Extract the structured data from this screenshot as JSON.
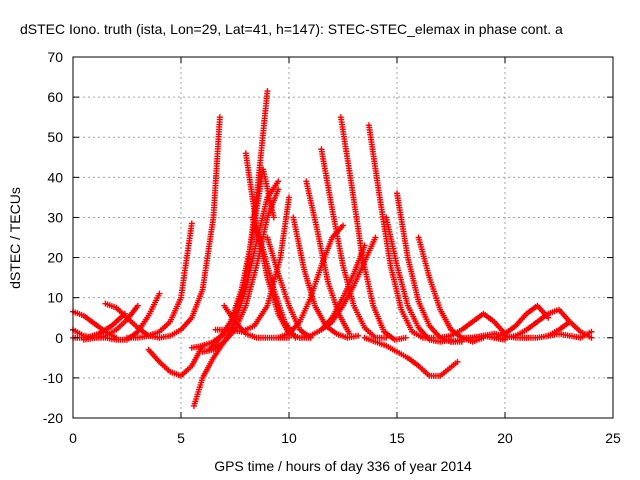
{
  "chart_data": {
    "type": "scatter",
    "title": "dSTEC Iono. truth (ista, Lon=29, Lat=41, h=147): STEC-STEC_elemax in phase cont. a",
    "xlabel": "GPS time / hours of day 336 of year 2014",
    "ylabel": "dSTEC  / TECUs",
    "xlim": [
      0,
      25
    ],
    "ylim": [
      -20,
      70
    ],
    "xticks": [
      0,
      5,
      10,
      15,
      20,
      25
    ],
    "yticks": [
      -20,
      -10,
      0,
      10,
      20,
      30,
      40,
      50,
      60,
      70
    ],
    "grid": true,
    "marker": "plus",
    "color": "#ff0000",
    "arcs": [
      {
        "x": [
          0.0,
          0.5,
          1.0,
          1.5,
          2.0
        ],
        "y": [
          6.5,
          5.5,
          3.5,
          1.5,
          0.0
        ]
      },
      {
        "x": [
          0.0,
          0.5,
          1.0,
          1.5,
          2.0,
          2.5,
          3.0
        ],
        "y": [
          2.0,
          0.5,
          0.0,
          0.5,
          2.0,
          4.5,
          8.0
        ]
      },
      {
        "x": [
          0.0,
          0.6,
          1.2,
          1.8,
          2.4
        ],
        "y": [
          0.0,
          0.0,
          1.0,
          3.0,
          6.0
        ]
      },
      {
        "x": [
          1.5,
          2.0,
          2.5,
          3.0,
          3.5,
          4.0
        ],
        "y": [
          8.5,
          7.5,
          5.0,
          2.5,
          0.5,
          0.0
        ]
      },
      {
        "x": [
          0.5,
          1.0,
          1.5,
          2.0,
          2.5,
          3.0,
          3.5,
          4.0
        ],
        "y": [
          -0.5,
          0.0,
          0.0,
          -0.5,
          -0.5,
          1.5,
          5.5,
          11.0
        ]
      },
      {
        "x": [
          3.5,
          4.0,
          4.5,
          5.0,
          5.5,
          6.0
        ],
        "y": [
          -3.0,
          -6.0,
          -8.5,
          -9.5,
          -7.0,
          -2.0
        ]
      },
      {
        "x": [
          2.5,
          3.0,
          3.5,
          4.0,
          4.5,
          5.0,
          5.5
        ],
        "y": [
          0.0,
          0.0,
          0.5,
          1.5,
          4.0,
          10.0,
          28.5
        ]
      },
      {
        "x": [
          4.0,
          4.5,
          5.0,
          5.5,
          6.0,
          6.5,
          6.8
        ],
        "y": [
          0.0,
          0.5,
          2.0,
          5.0,
          12.0,
          30.0,
          55.0
        ]
      },
      {
        "x": [
          5.5,
          6.0,
          6.5,
          7.0,
          7.5,
          8.0,
          8.5,
          9.0
        ],
        "y": [
          -2.5,
          -2.0,
          -1.0,
          1.0,
          6.0,
          14.0,
          35.0,
          61.5
        ]
      },
      {
        "x": [
          5.6,
          6.0,
          6.5,
          7.0,
          7.5,
          8.0,
          8.5,
          9.0,
          9.5
        ],
        "y": [
          -17.0,
          -10.0,
          -5.0,
          -1.0,
          4.0,
          12.0,
          24.0,
          35.0,
          39.0
        ]
      },
      {
        "x": [
          6.0,
          6.5,
          7.0,
          7.5,
          8.0,
          8.5,
          9.0,
          9.5
        ],
        "y": [
          -3.5,
          -3.0,
          -1.0,
          2.0,
          8.0,
          18.0,
          30.0,
          37.0
        ]
      },
      {
        "x": [
          6.3,
          6.8,
          7.3,
          7.8,
          8.3,
          8.8,
          9.3
        ],
        "y": [
          -3.0,
          0.0,
          4.0,
          12.0,
          25.0,
          42.0,
          30.0
        ]
      },
      {
        "x": [
          6.6,
          7.2,
          7.8,
          8.4,
          9.0,
          9.6,
          10.0
        ],
        "y": [
          2.0,
          2.0,
          1.5,
          3.0,
          8.0,
          20.0,
          35.0
        ]
      },
      {
        "x": [
          8.0,
          8.5,
          9.0,
          9.5,
          10.0,
          10.5,
          11.0
        ],
        "y": [
          46.0,
          28.0,
          15.0,
          6.0,
          1.0,
          0.0,
          0.0
        ]
      },
      {
        "x": [
          8.3,
          8.8,
          9.3,
          9.8,
          10.3
        ],
        "y": [
          30.0,
          22.0,
          12.0,
          4.0,
          0.0
        ]
      },
      {
        "x": [
          9.0,
          9.5,
          10.0,
          10.5,
          11.0
        ],
        "y": [
          25.0,
          16.0,
          8.0,
          2.0,
          0.0
        ]
      },
      {
        "x": [
          7.0,
          7.5,
          8.0,
          8.5,
          9.0,
          9.5,
          10.0
        ],
        "y": [
          8.0,
          4.0,
          1.0,
          0.0,
          0.0,
          0.0,
          0.0
        ]
      },
      {
        "x": [
          9.5,
          10.0,
          10.5,
          11.0,
          11.5,
          12.0,
          12.5
        ],
        "y": [
          0.0,
          1.0,
          4.0,
          10.0,
          18.0,
          25.0,
          28.0
        ]
      },
      {
        "x": [
          10.2,
          10.7,
          11.2,
          11.7,
          12.2,
          12.7,
          13.2
        ],
        "y": [
          30.0,
          17.0,
          8.0,
          3.0,
          1.0,
          0.0,
          0.5
        ]
      },
      {
        "x": [
          10.8,
          11.3,
          11.8,
          12.3,
          12.8
        ],
        "y": [
          39.0,
          27.0,
          14.0,
          6.0,
          1.0
        ]
      },
      {
        "x": [
          11.5,
          12.0,
          12.5,
          13.0,
          13.5,
          14.0,
          14.5
        ],
        "y": [
          47.0,
          32.0,
          18.0,
          8.0,
          2.5,
          0.0,
          0.0
        ]
      },
      {
        "x": [
          12.4,
          12.9,
          13.4,
          13.9,
          14.4,
          14.9,
          15.4
        ],
        "y": [
          55.0,
          38.0,
          20.0,
          8.0,
          1.5,
          -0.5,
          0.0
        ]
      },
      {
        "x": [
          11.5,
          12.0,
          12.5,
          13.0,
          13.5,
          14.0
        ],
        "y": [
          2.0,
          4.0,
          8.0,
          13.0,
          19.0,
          25.0
        ]
      },
      {
        "x": [
          10.5,
          11.0,
          11.5,
          12.0,
          12.5,
          13.0,
          13.5
        ],
        "y": [
          0.0,
          0.5,
          2.0,
          5.0,
          10.0,
          16.0,
          23.0
        ]
      },
      {
        "x": [
          13.7,
          14.2,
          14.7,
          15.2,
          15.7,
          16.2,
          16.7
        ],
        "y": [
          53.0,
          35.0,
          18.0,
          7.0,
          1.5,
          0.0,
          0.0
        ]
      },
      {
        "x": [
          14.5,
          15.0,
          15.5,
          16.0,
          16.5,
          17.0,
          17.5
        ],
        "y": [
          30.0,
          18.0,
          8.0,
          2.5,
          -0.5,
          -1.0,
          -0.5
        ]
      },
      {
        "x": [
          15.0,
          15.5,
          16.0,
          16.5,
          17.0,
          17.5,
          18.0
        ],
        "y": [
          36.0,
          20.0,
          9.0,
          3.0,
          0.0,
          -1.0,
          -1.0
        ]
      },
      {
        "x": [
          13.5,
          14.0,
          14.5,
          15.0,
          15.5,
          16.0,
          16.5,
          17.0,
          17.8
        ],
        "y": [
          0.0,
          -1.0,
          -2.0,
          -3.5,
          -5.0,
          -7.0,
          -9.5,
          -9.5,
          -6.0
        ]
      },
      {
        "x": [
          16.0,
          16.5,
          17.0,
          17.5,
          18.0,
          18.5,
          19.0
        ],
        "y": [
          25.0,
          15.0,
          7.0,
          2.0,
          0.0,
          -1.0,
          0.0
        ]
      },
      {
        "x": [
          17.0,
          17.5,
          18.0,
          18.5,
          19.0,
          19.5,
          20.0
        ],
        "y": [
          0.0,
          0.5,
          2.0,
          4.0,
          6.0,
          4.0,
          1.0
        ]
      },
      {
        "x": [
          18.0,
          18.5,
          19.0,
          19.5,
          20.0,
          20.5,
          21.0
        ],
        "y": [
          0.0,
          0.0,
          0.5,
          1.0,
          0.5,
          0.0,
          0.0
        ]
      },
      {
        "x": [
          19.5,
          20.0,
          20.5,
          21.0,
          21.5,
          22.0
        ],
        "y": [
          0.0,
          1.0,
          3.0,
          6.0,
          8.0,
          5.0
        ]
      },
      {
        "x": [
          20.0,
          20.5,
          21.0,
          21.5,
          22.0,
          22.5,
          23.0
        ],
        "y": [
          0.0,
          0.5,
          2.0,
          4.0,
          6.0,
          7.0,
          4.0
        ]
      },
      {
        "x": [
          21.0,
          21.5,
          22.0,
          22.5,
          23.0,
          23.5,
          24.0
        ],
        "y": [
          0.0,
          0.0,
          0.5,
          2.0,
          4.0,
          1.5,
          0.0
        ]
      },
      {
        "x": [
          22.0,
          22.5,
          23.0,
          23.5,
          24.0
        ],
        "y": [
          0.5,
          1.0,
          0.5,
          0.0,
          1.5
        ]
      },
      {
        "x": [
          17.5,
          18.0,
          18.5,
          19.0,
          19.5,
          20.0
        ],
        "y": [
          -1.0,
          -0.5,
          0.0,
          0.5,
          0.0,
          -0.5
        ]
      }
    ]
  }
}
